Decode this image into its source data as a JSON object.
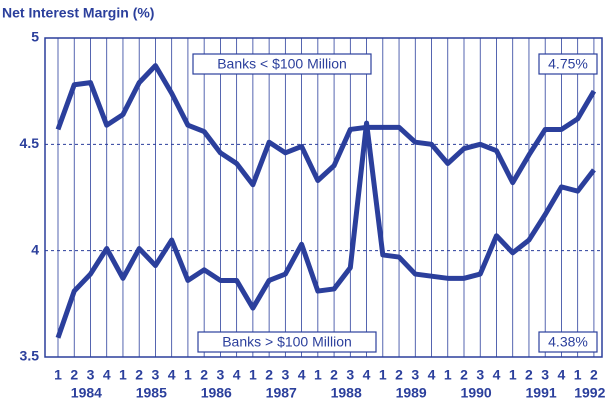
{
  "chart_data": {
    "type": "line",
    "title": "Net Interest Margin (%)",
    "categories": [
      "1",
      "2",
      "3",
      "4",
      "1",
      "2",
      "3",
      "4",
      "1",
      "2",
      "3",
      "4",
      "1",
      "2",
      "3",
      "4",
      "1",
      "2",
      "3",
      "4",
      "1",
      "2",
      "3",
      "4",
      "1",
      "2",
      "3",
      "4",
      "1",
      "2",
      "3",
      "4",
      "1",
      "2"
    ],
    "year_labels": [
      "1984",
      "1985",
      "1986",
      "1987",
      "1988",
      "1989",
      "1990",
      "1991",
      "1992"
    ],
    "ylim": [
      3.5,
      5
    ],
    "yticks": [
      3.5,
      4,
      4.5,
      5
    ],
    "grid": true,
    "series": [
      {
        "name": "Banks < $100 Million",
        "color": "#2b3f9c",
        "values": [
          4.57,
          4.78,
          4.79,
          4.59,
          4.64,
          4.79,
          4.87,
          4.74,
          4.59,
          4.56,
          4.46,
          4.41,
          4.31,
          4.51,
          4.46,
          4.49,
          4.33,
          4.4,
          4.57,
          4.58,
          4.58,
          4.58,
          4.51,
          4.5,
          4.41,
          4.48,
          4.5,
          4.47,
          4.32,
          4.45,
          4.57,
          4.57,
          4.62,
          4.75
        ],
        "value_labels": [
          null,
          null,
          null,
          null,
          null,
          null,
          null,
          null,
          null,
          null,
          null,
          null,
          null,
          null,
          null,
          null,
          null,
          null,
          null,
          null,
          null,
          null,
          null,
          null,
          null,
          null,
          null,
          null,
          null,
          null,
          null,
          null,
          null,
          "4.75%"
        ]
      },
      {
        "name": "Banks > $100 Million",
        "color": "#2b3f9c",
        "values": [
          3.59,
          3.81,
          3.89,
          4.01,
          3.87,
          4.01,
          3.93,
          4.05,
          3.86,
          3.91,
          3.86,
          3.86,
          3.73,
          3.86,
          3.89,
          4.03,
          3.81,
          3.82,
          3.92,
          4.6,
          3.98,
          3.97,
          3.89,
          3.88,
          3.87,
          3.87,
          3.89,
          4.07,
          3.99,
          4.05,
          4.17,
          4.3,
          4.28,
          4.38
        ],
        "value_labels": [
          null,
          null,
          null,
          null,
          null,
          null,
          null,
          null,
          null,
          null,
          null,
          null,
          null,
          null,
          null,
          null,
          null,
          null,
          null,
          null,
          null,
          null,
          null,
          null,
          null,
          null,
          null,
          null,
          null,
          null,
          null,
          null,
          null,
          "4.38%"
        ]
      }
    ]
  }
}
